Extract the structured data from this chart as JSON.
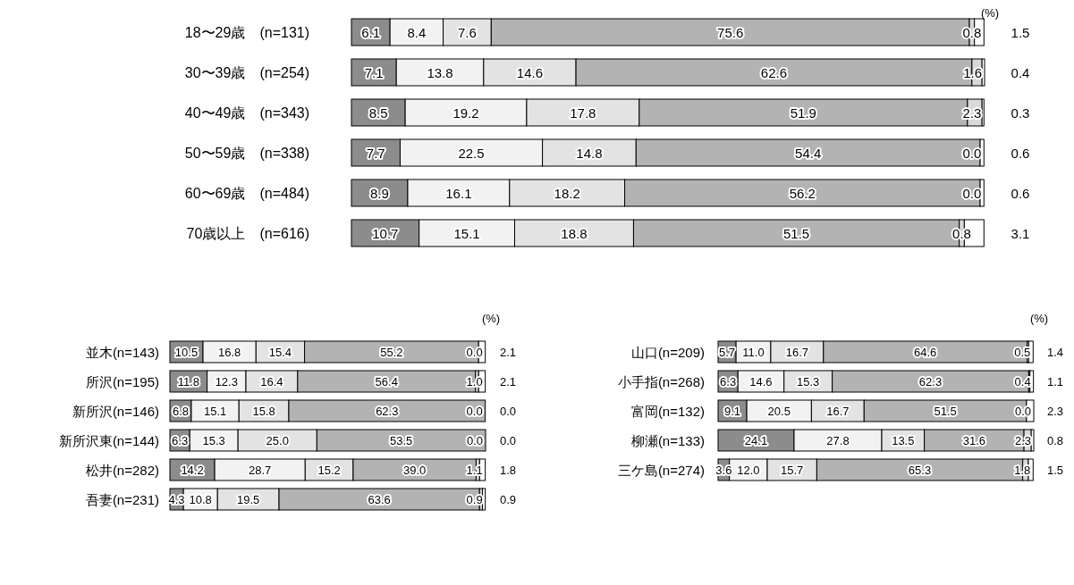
{
  "chart_data": [
    {
      "type": "bar",
      "orientation": "horizontal",
      "stacked": true,
      "data_labels": true,
      "annotations": [
        "(%)"
      ],
      "categories": [
        "18〜29歳　(n=131)",
        "30〜39歳　(n=254)",
        "40〜49歳　(n=343)",
        "50〜59歳　(n=338)",
        "60〜69歳　(n=484)",
        "70歳以上　(n=616)"
      ],
      "series": [
        {
          "color": "#8c8c8c",
          "values": [
            6.1,
            7.1,
            8.5,
            7.7,
            8.9,
            10.7
          ],
          "value_labels": [
            "6.1",
            "7.1",
            "8.5",
            "7.7",
            "8.9",
            "10.7"
          ]
        },
        {
          "color": "#f2f2f2",
          "values": [
            8.4,
            13.8,
            19.2,
            22.5,
            16.1,
            15.1
          ],
          "value_labels": [
            "8.4",
            "13.8",
            "19.2",
            "22.5",
            "16.1",
            "15.1"
          ]
        },
        {
          "color": "#e3e3e3",
          "values": [
            7.6,
            14.6,
            17.8,
            14.8,
            18.2,
            18.8
          ],
          "value_labels": [
            "7.6",
            "14.6",
            "17.8",
            "14.8",
            "18.2",
            "18.8"
          ]
        },
        {
          "color": "#b3b3b3",
          "values": [
            75.6,
            62.6,
            51.9,
            54.4,
            56.2,
            51.5
          ],
          "value_labels": [
            "75.6",
            "62.6",
            "51.9",
            "54.4",
            "56.2",
            "51.5"
          ]
        },
        {
          "color": "#d9d9d9",
          "values": [
            0.8,
            1.6,
            2.3,
            0.0,
            0.0,
            0.8
          ],
          "value_labels": [
            "0.8",
            "1.6",
            "2.3",
            "0.0",
            "0.0",
            "0.8"
          ]
        },
        {
          "color": "#ffffff",
          "values": [
            1.5,
            0.4,
            0.3,
            0.6,
            0.6,
            3.1
          ],
          "value_labels": [
            "1.5",
            "0.4",
            "0.3",
            "0.6",
            "0.6",
            "3.1"
          ]
        }
      ]
    },
    {
      "type": "bar",
      "orientation": "horizontal",
      "stacked": true,
      "data_labels": true,
      "annotations": [
        "(%)"
      ],
      "categories": [
        "並木(n=143)",
        "所沢(n=195)",
        "新所沢(n=146)",
        "新所沢東(n=144)",
        "松井(n=282)",
        "吾妻(n=231)"
      ],
      "series": [
        {
          "color": "#8c8c8c",
          "values": [
            10.5,
            11.8,
            6.8,
            6.3,
            14.2,
            4.3
          ],
          "value_labels": [
            "10.5",
            "11.8",
            "6.8",
            "6.3",
            "14.2",
            "4.3"
          ]
        },
        {
          "color": "#f2f2f2",
          "values": [
            16.8,
            12.3,
            15.1,
            15.3,
            28.7,
            10.8
          ],
          "value_labels": [
            "16.8",
            "12.3",
            "15.1",
            "15.3",
            "28.7",
            "10.8"
          ]
        },
        {
          "color": "#e3e3e3",
          "values": [
            15.4,
            16.4,
            15.8,
            25.0,
            15.2,
            19.5
          ],
          "value_labels": [
            "15.4",
            "16.4",
            "15.8",
            "25.0",
            "15.2",
            "19.5"
          ]
        },
        {
          "color": "#b3b3b3",
          "values": [
            55.2,
            56.4,
            62.3,
            53.5,
            39.0,
            63.6
          ],
          "value_labels": [
            "55.2",
            "56.4",
            "62.3",
            "53.5",
            "39.0",
            "63.6"
          ]
        },
        {
          "color": "#d9d9d9",
          "values": [
            0.0,
            1.0,
            0.0,
            0.0,
            1.1,
            0.9
          ],
          "value_labels": [
            "0.0",
            "1.0",
            "0.0",
            "0.0",
            "1.1",
            "0.9"
          ]
        },
        {
          "color": "#ffffff",
          "values": [
            2.1,
            2.1,
            0.0,
            0.0,
            1.8,
            0.9
          ],
          "value_labels": [
            "2.1",
            "2.1",
            "0.0",
            "0.0",
            "1.8",
            "0.9"
          ]
        }
      ]
    },
    {
      "type": "bar",
      "orientation": "horizontal",
      "stacked": true,
      "data_labels": true,
      "annotations": [
        "(%)"
      ],
      "categories": [
        "山口(n=209)",
        "小手指(n=268)",
        "富岡(n=132)",
        "柳瀬(n=133)",
        "三ケ島(n=274)"
      ],
      "series": [
        {
          "color": "#8c8c8c",
          "values": [
            5.7,
            6.3,
            9.1,
            24.1,
            3.6
          ],
          "value_labels": [
            "5.7",
            "6.3",
            "9.1",
            "24.1",
            "3.6"
          ]
        },
        {
          "color": "#f2f2f2",
          "values": [
            11.0,
            14.6,
            20.5,
            27.8,
            12.0
          ],
          "value_labels": [
            "11.0",
            "14.6",
            "20.5",
            "27.8",
            "12.0"
          ]
        },
        {
          "color": "#e3e3e3",
          "values": [
            16.7,
            15.3,
            16.7,
            13.5,
            15.7
          ],
          "value_labels": [
            "16.7",
            "15.3",
            "16.7",
            "13.5",
            "15.7"
          ]
        },
        {
          "color": "#b3b3b3",
          "values": [
            64.6,
            62.3,
            51.5,
            31.6,
            65.3
          ],
          "value_labels": [
            "64.6",
            "62.3",
            "51.5",
            "31.6",
            "65.3"
          ]
        },
        {
          "color": "#d9d9d9",
          "values": [
            0.5,
            0.4,
            0.0,
            2.3,
            1.8
          ],
          "value_labels": [
            "0.5",
            "0.4",
            "0.0",
            "2.3",
            "1.8"
          ]
        },
        {
          "color": "#ffffff",
          "values": [
            1.4,
            1.1,
            2.3,
            0.8,
            1.5
          ],
          "value_labels": [
            "1.4",
            "1.1",
            "2.3",
            "0.8",
            "1.5"
          ]
        }
      ]
    }
  ]
}
